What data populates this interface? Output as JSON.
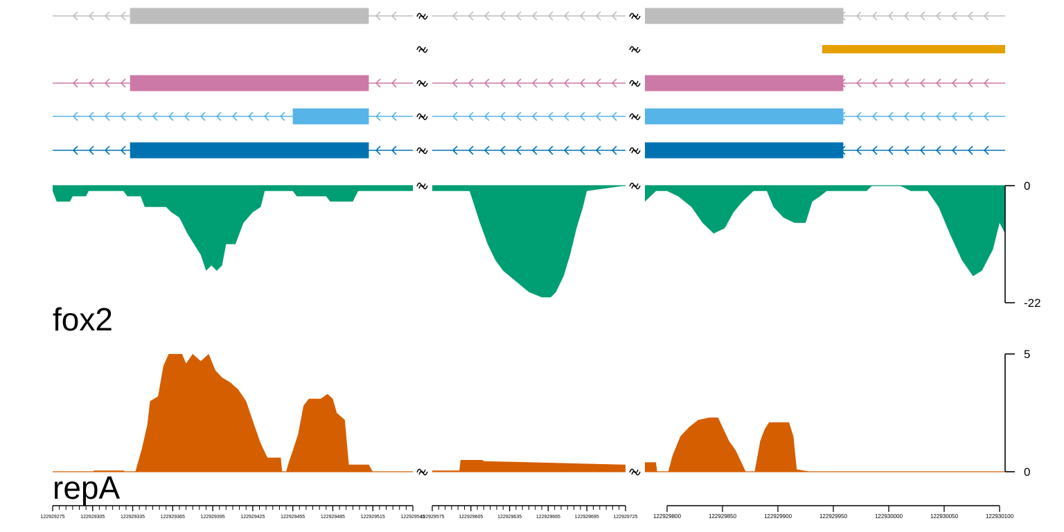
{
  "chart_data": {
    "type": "area",
    "description_free": true,
    "segments": [
      {
        "start": 122929275,
        "end": 122929545
      },
      {
        "start": 122929575,
        "end": 122929725
      },
      {
        "start": 122929780,
        "end": 122930105
      }
    ],
    "transcripts": [
      {
        "color": "#bdbdbd",
        "exons": [
          [
            122929333,
            122929512
          ],
          [
            122929780,
            122929959
          ]
        ]
      },
      {
        "color": "#e69f00",
        "exons": [
          [
            122929940,
            122930105
          ]
        ]
      },
      {
        "color": "#cc79a7",
        "exons": [
          [
            122929333,
            122929512
          ],
          [
            122929780,
            122929959
          ]
        ]
      },
      {
        "color": "#56b4e9",
        "exons": [
          [
            122929455,
            122929512
          ],
          [
            122929780,
            122929959
          ]
        ]
      },
      {
        "color": "#0072b2",
        "exons": [
          [
            122929333,
            122929512
          ],
          [
            122929780,
            122929959
          ]
        ]
      }
    ],
    "tracks": [
      {
        "name": "fox2",
        "color": "#009e73",
        "ylim": [
          -22,
          0
        ],
        "scale_labels": [
          "0",
          "-22"
        ],
        "coverage": [
          [
            122929275,
            -1
          ],
          [
            122929278,
            -3
          ],
          [
            122929288,
            -3
          ],
          [
            122929290,
            -2
          ],
          [
            122929300,
            -2
          ],
          [
            122929302,
            -1
          ],
          [
            122929328,
            -1
          ],
          [
            122929331,
            -2
          ],
          [
            122929341,
            -2
          ],
          [
            122929344,
            -4
          ],
          [
            122929360,
            -4
          ],
          [
            122929364,
            -5
          ],
          [
            122929370,
            -6
          ],
          [
            122929376,
            -9
          ],
          [
            122929381,
            -11
          ],
          [
            122929386,
            -13
          ],
          [
            122929390,
            -16
          ],
          [
            122929394,
            -15
          ],
          [
            122929398,
            -16
          ],
          [
            122929402,
            -15
          ],
          [
            122929405,
            -11
          ],
          [
            122929412,
            -11
          ],
          [
            122929418,
            -7
          ],
          [
            122929425,
            -5
          ],
          [
            122929431,
            -4
          ],
          [
            122929434,
            -1
          ],
          [
            122929455,
            -1
          ],
          [
            122929458,
            -2
          ],
          [
            122929480,
            -2
          ],
          [
            122929483,
            -3
          ],
          [
            122929495,
            -3
          ],
          [
            122929500,
            -3
          ],
          [
            122929504,
            -1
          ],
          [
            122929540,
            -1
          ],
          [
            122929545,
            -1
          ],
          [
            122929575,
            -1
          ],
          [
            122929585,
            -1
          ],
          [
            122929604,
            -1
          ],
          [
            122929608,
            -4
          ],
          [
            122929612,
            -7
          ],
          [
            122929618,
            -11
          ],
          [
            122929624,
            -14
          ],
          [
            122929630,
            -16
          ],
          [
            122929640,
            -18
          ],
          [
            122929650,
            -20
          ],
          [
            122929660,
            -21
          ],
          [
            122929667,
            -21
          ],
          [
            122929671,
            -20
          ],
          [
            122929677,
            -17
          ],
          [
            122929682,
            -13
          ],
          [
            122929687,
            -8
          ],
          [
            122929692,
            -4
          ],
          [
            122929695,
            -1
          ],
          [
            122929725,
            0
          ],
          [
            122929780,
            -3
          ],
          [
            122929790,
            -1
          ],
          [
            122929800,
            -1
          ],
          [
            122929810,
            -2
          ],
          [
            122929822,
            -4
          ],
          [
            122929832,
            -7
          ],
          [
            122929842,
            -9
          ],
          [
            122929852,
            -8
          ],
          [
            122929860,
            -5
          ],
          [
            122929868,
            -3
          ],
          [
            122929878,
            -1
          ],
          [
            122929890,
            -1
          ],
          [
            122929896,
            -4
          ],
          [
            122929905,
            -6
          ],
          [
            122929915,
            -7
          ],
          [
            122929925,
            -7
          ],
          [
            122929931,
            -3
          ],
          [
            122929938,
            -2
          ],
          [
            122929944,
            -1
          ],
          [
            122929980,
            -1
          ],
          [
            122929985,
            0
          ],
          [
            122930010,
            0
          ],
          [
            122930020,
            -1
          ],
          [
            122930035,
            -1
          ],
          [
            122930045,
            -4
          ],
          [
            122930055,
            -9
          ],
          [
            122930066,
            -14
          ],
          [
            122930076,
            -17
          ],
          [
            122930084,
            -16
          ],
          [
            122930094,
            -12
          ],
          [
            122930100,
            -7
          ],
          [
            122930105,
            -9
          ]
        ]
      },
      {
        "name": "repA",
        "color": "#d55e00",
        "ylim": [
          0,
          5
        ],
        "scale_labels": [
          "5",
          "0"
        ],
        "coverage": [
          [
            122929275,
            0
          ],
          [
            122929305,
            0
          ],
          [
            122929306,
            0.05
          ],
          [
            122929328,
            0.05
          ],
          [
            122929330,
            0
          ],
          [
            122929337,
            0
          ],
          [
            122929342,
            1
          ],
          [
            122929346,
            2
          ],
          [
            122929348,
            3
          ],
          [
            122929354,
            3.2
          ],
          [
            122929358,
            4.5
          ],
          [
            122929362,
            5
          ],
          [
            122929372,
            5
          ],
          [
            122929375,
            4.6
          ],
          [
            122929380,
            5
          ],
          [
            122929386,
            4.7
          ],
          [
            122929392,
            5
          ],
          [
            122929397,
            4.3
          ],
          [
            122929402,
            4
          ],
          [
            122929408,
            3.8
          ],
          [
            122929414,
            3.5
          ],
          [
            122929420,
            3
          ],
          [
            122929426,
            2
          ],
          [
            122929431,
            1.2
          ],
          [
            122929436,
            0.6
          ],
          [
            122929442,
            0.6
          ],
          [
            122929446,
            0.6
          ],
          [
            122929447,
            0
          ],
          [
            122929450,
            0
          ],
          [
            122929452,
            0.4
          ],
          [
            122929455,
            0.9
          ],
          [
            122929459,
            1.6
          ],
          [
            122929463,
            2.8
          ],
          [
            122929467,
            3.1
          ],
          [
            122929476,
            3.1
          ],
          [
            122929481,
            3.3
          ],
          [
            122929485,
            3.1
          ],
          [
            122929488,
            2.5
          ],
          [
            122929494,
            2.2
          ],
          [
            122929497,
            0.3
          ],
          [
            122929512,
            0.3
          ],
          [
            122929515,
            0
          ],
          [
            122929545,
            0
          ],
          [
            122929575,
            0.05
          ],
          [
            122929596,
            0.05
          ],
          [
            122929597,
            0.5
          ],
          [
            122929614,
            0.5
          ],
          [
            122929615,
            0.45
          ],
          [
            122929725,
            0.3
          ],
          [
            122929780,
            0.4
          ],
          [
            122929790,
            0.4
          ],
          [
            122929791,
            0
          ],
          [
            122929801,
            0
          ],
          [
            122929805,
            0.7
          ],
          [
            122929812,
            1.5
          ],
          [
            122929820,
            1.9
          ],
          [
            122929828,
            2.2
          ],
          [
            122929838,
            2.3
          ],
          [
            122929846,
            2.3
          ],
          [
            122929852,
            1.7
          ],
          [
            122929856,
            1.3
          ],
          [
            122929862,
            0.9
          ],
          [
            122929866,
            0.5
          ],
          [
            122929871,
            0
          ],
          [
            122929879,
            0
          ],
          [
            122929884,
            1.3
          ],
          [
            122929888,
            1.8
          ],
          [
            122929892,
            2.1
          ],
          [
            122929910,
            2.1
          ],
          [
            122929914,
            1.5
          ],
          [
            122929917,
            0.1
          ],
          [
            122929930,
            0
          ],
          [
            122930105,
            0
          ]
        ]
      }
    ],
    "x_ticks": [
      {
        "segment": 0,
        "values": [
          122929275,
          122929305,
          122929335,
          122929365,
          122929395,
          122929425,
          122929455,
          122929485,
          122929515,
          122929545
        ]
      },
      {
        "segment": 1,
        "values": [
          122929575,
          122929605,
          122929635,
          122929665,
          122929695,
          122929725
        ]
      },
      {
        "segment": 2,
        "values": [
          122929800,
          122929850,
          122929900,
          122929950,
          122930000,
          122930050,
          122930100
        ]
      }
    ]
  }
}
